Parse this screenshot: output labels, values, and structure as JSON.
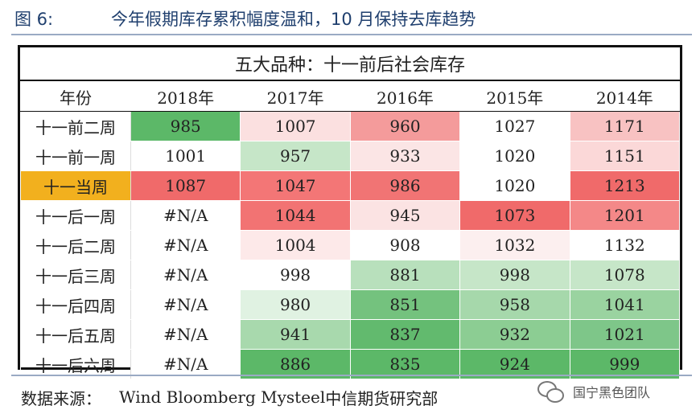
{
  "figure": {
    "number": "图 6:",
    "title": "今年假期库存累积幅度温和，10 月保持去库趋势"
  },
  "table": {
    "title": "五大品种：十一前后社会库存",
    "corner_label": "年份",
    "columns": [
      "2018年",
      "2017年",
      "2016年",
      "2015年",
      "2014年"
    ],
    "rows": [
      {
        "label": "十一前二周",
        "values": [
          "985",
          "1007",
          "960",
          "1027",
          "1171"
        ],
        "colors": [
          "#5cb868",
          "#fbe0e0",
          "#f49b9b",
          "#ffffff",
          "#f8c2c2"
        ]
      },
      {
        "label": "十一前一周",
        "values": [
          "1001",
          "957",
          "933",
          "1020",
          "1151"
        ],
        "colors": [
          "#ffffff",
          "#c6e6c8",
          "#fbe5e5",
          "#ffffff",
          "#fbd8d8"
        ]
      },
      {
        "label": "十一当周",
        "values": [
          "1087",
          "1047",
          "986",
          "1020",
          "1213"
        ],
        "colors": [
          "#f06a6a",
          "#f37676",
          "#f17474",
          "#ffffff",
          "#f06a6a"
        ],
        "highlight": true
      },
      {
        "label": "十一后一周",
        "values": [
          "#N/A",
          "1044",
          "945",
          "1073",
          "1201"
        ],
        "colors": [
          "#ffffff",
          "#f27373",
          "#fbe3e3",
          "#f06a6a",
          "#f48888"
        ]
      },
      {
        "label": "十一后二周",
        "values": [
          "#N/A",
          "1004",
          "908",
          "1032",
          "1132"
        ],
        "colors": [
          "#ffffff",
          "#fde9e9",
          "#ffffff",
          "#fcefef",
          "#ffffff"
        ]
      },
      {
        "label": "十一后三周",
        "values": [
          "#N/A",
          "998",
          "881",
          "998",
          "1078"
        ],
        "colors": [
          "#ffffff",
          "#ffffff",
          "#b8e0bc",
          "#c6e6c8",
          "#c6e6c8"
        ]
      },
      {
        "label": "十一后四周",
        "values": [
          "#N/A",
          "980",
          "851",
          "958",
          "1041"
        ],
        "colors": [
          "#ffffff",
          "#e0f2e2",
          "#74c27e",
          "#a6d8ab",
          "#9ad3a0"
        ]
      },
      {
        "label": "十一后五周",
        "values": [
          "#N/A",
          "941",
          "837",
          "932",
          "1021"
        ],
        "colors": [
          "#ffffff",
          "#a8d9ad",
          "#62ba6e",
          "#8ccd93",
          "#7ec689"
        ]
      },
      {
        "label": "十一后六周",
        "values": [
          "#N/A",
          "886",
          "835",
          "924",
          "999"
        ],
        "colors": [
          "#ffffff",
          "#5cb868",
          "#5cb868",
          "#5cb868",
          "#5cb868"
        ]
      }
    ],
    "highlight_label_color": "#f2b01e"
  },
  "source": {
    "label": "数据来源：",
    "text_en": "Wind Bloomberg Mysteel",
    "text_cn": " 中信期货研究部"
  },
  "watermark": {
    "text": "国宁黑色团队",
    "icon": "wechat-icon"
  }
}
